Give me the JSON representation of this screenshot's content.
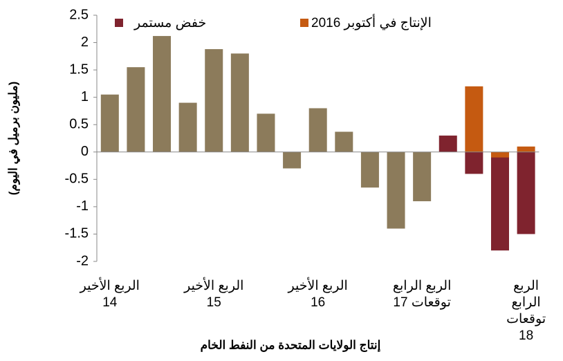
{
  "chart_data": {
    "type": "bar",
    "ylabel": "(مليون برميل في اليوم)",
    "xlabel": "إنتاج الولايات المتحدة من النفط الخام",
    "categories": [
      "الربع الأخير\n14",
      null,
      null,
      null,
      "الربع الأخير\n15",
      null,
      null,
      null,
      "الربع الأخير\n16",
      null,
      null,
      null,
      "الربع الرابع\nتوقعات 17",
      null,
      null,
      null,
      "الربع الرابع\nتوقعات 18"
    ],
    "series": [
      {
        "color": "#8c7b5b",
        "values": [
          1.05,
          1.55,
          2.12,
          0.9,
          1.88,
          1.8,
          0.7,
          -0.3,
          0.8,
          0.37,
          -0.65,
          -1.4,
          -0.9,
          null,
          null,
          null,
          null
        ]
      },
      {
        "name": "خفض مستمر",
        "color": "#7f232e",
        "values": [
          null,
          null,
          null,
          null,
          null,
          null,
          null,
          null,
          null,
          null,
          null,
          null,
          null,
          0.3,
          -0.4,
          -1.8,
          -1.5
        ]
      },
      {
        "name": "الإنتاج في أكتوبر 2016",
        "color": "#c55a11",
        "values": [
          null,
          null,
          null,
          null,
          null,
          null,
          null,
          null,
          null,
          null,
          null,
          null,
          null,
          null,
          1.2,
          -0.1,
          0.1
        ]
      }
    ],
    "ylim": [
      -2,
      2.5
    ],
    "yticks": [
      -2,
      -1.5,
      -1,
      -0.5,
      0,
      0.5,
      1,
      1.5,
      2,
      2.5
    ],
    "legend": "top"
  }
}
